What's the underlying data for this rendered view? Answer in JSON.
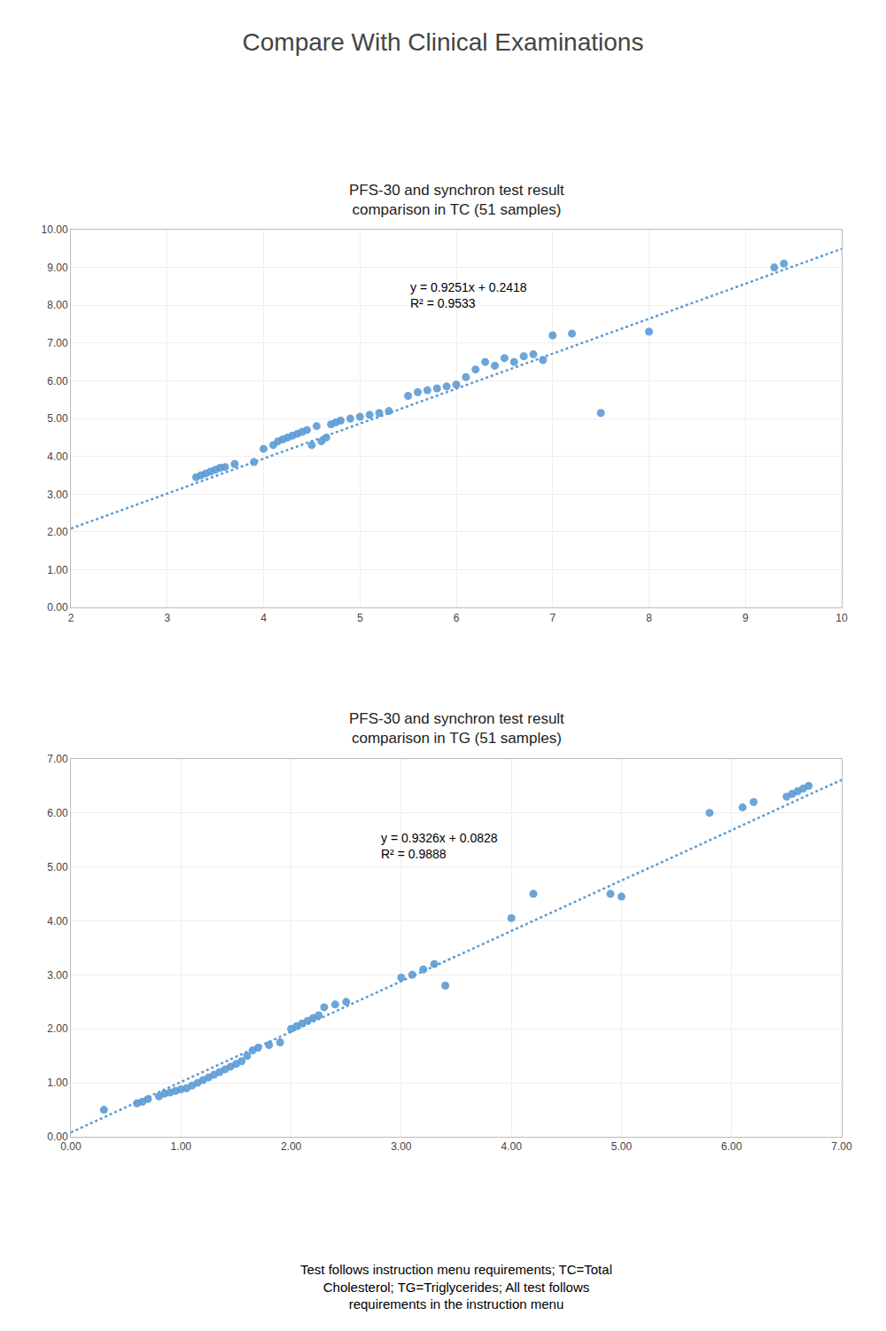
{
  "title": "Compare With Clinical Examinations",
  "footer": "Test follows instruction menu requirements; TC=Total\nCholesterol; TG=Triglycerides; All test follows\nrequirements in the instruction menu",
  "chart_data": [
    {
      "type": "scatter",
      "title": "PFS-30 and synchron test result\ncomparison in TC (51 samples)",
      "grid": true,
      "xlim": [
        2,
        10
      ],
      "ylim": [
        0,
        10
      ],
      "xticks": [
        2,
        3,
        4,
        5,
        6,
        7,
        8,
        9,
        10
      ],
      "yticks": [
        {
          "value": 0.0,
          "label": "0.00"
        },
        {
          "value": 1.0,
          "label": "1.00"
        },
        {
          "value": 2.0,
          "label": "2.00"
        },
        {
          "value": 3.0,
          "label": "3.00"
        },
        {
          "value": 4.0,
          "label": "4.00"
        },
        {
          "value": 5.0,
          "label": "5.00"
        },
        {
          "value": 6.0,
          "label": "6.00"
        },
        {
          "value": 7.0,
          "label": "7.00"
        },
        {
          "value": 8.0,
          "label": "8.00"
        },
        {
          "value": 9.0,
          "label": "9.00"
        },
        {
          "value": 10.0,
          "label": "10.00"
        }
      ],
      "series": [
        {
          "type": "scatter",
          "marker": "circle",
          "color": "#5b9bd5",
          "x": [
            3.3,
            3.35,
            3.4,
            3.45,
            3.5,
            3.55,
            3.6,
            3.7,
            3.9,
            4.0,
            4.1,
            4.15,
            4.2,
            4.25,
            4.3,
            4.35,
            4.4,
            4.45,
            4.5,
            4.55,
            4.6,
            4.65,
            4.7,
            4.75,
            4.8,
            4.9,
            5.0,
            5.1,
            5.2,
            5.3,
            5.5,
            5.6,
            5.7,
            5.8,
            5.9,
            6.0,
            6.1,
            6.2,
            6.3,
            6.4,
            6.5,
            6.6,
            6.7,
            6.8,
            6.9,
            7.0,
            7.2,
            7.5,
            8.0,
            9.3,
            9.4
          ],
          "values": [
            3.45,
            3.5,
            3.55,
            3.6,
            3.65,
            3.7,
            3.72,
            3.8,
            3.85,
            4.2,
            4.3,
            4.4,
            4.45,
            4.5,
            4.55,
            4.6,
            4.65,
            4.7,
            4.3,
            4.8,
            4.4,
            4.5,
            4.85,
            4.9,
            4.95,
            5.0,
            5.05,
            5.1,
            5.15,
            5.2,
            5.6,
            5.7,
            5.75,
            5.8,
            5.85,
            5.9,
            6.1,
            6.3,
            6.5,
            6.4,
            6.6,
            6.5,
            6.65,
            6.7,
            6.55,
            7.2,
            7.25,
            5.15,
            7.3,
            9.0,
            9.1
          ]
        },
        {
          "type": "line",
          "line_style": "dotted",
          "color": "#5b9bd5",
          "x": [
            2,
            10
          ],
          "values": [
            2.092,
            9.4928
          ]
        }
      ],
      "annotations": [
        {
          "x": 5.5,
          "y": 8.7,
          "text": "y = 0.9251x + 0.2418\nR² = 0.9533"
        }
      ]
    },
    {
      "type": "scatter",
      "title": "PFS-30 and synchron test result\ncomparison in TG (51 samples)",
      "grid": true,
      "xlim": [
        0,
        7
      ],
      "ylim": [
        0,
        7
      ],
      "xticks": [
        {
          "value": 0.0,
          "label": "0.00"
        },
        {
          "value": 1.0,
          "label": "1.00"
        },
        {
          "value": 2.0,
          "label": "2.00"
        },
        {
          "value": 3.0,
          "label": "3.00"
        },
        {
          "value": 4.0,
          "label": "4.00"
        },
        {
          "value": 5.0,
          "label": "5.00"
        },
        {
          "value": 6.0,
          "label": "6.00"
        },
        {
          "value": 7.0,
          "label": "7.00"
        }
      ],
      "yticks": [
        {
          "value": 0.0,
          "label": "0.00"
        },
        {
          "value": 1.0,
          "label": "1.00"
        },
        {
          "value": 2.0,
          "label": "2.00"
        },
        {
          "value": 3.0,
          "label": "3.00"
        },
        {
          "value": 4.0,
          "label": "4.00"
        },
        {
          "value": 5.0,
          "label": "5.00"
        },
        {
          "value": 6.0,
          "label": "6.00"
        },
        {
          "value": 7.0,
          "label": "7.00"
        }
      ],
      "series": [
        {
          "type": "scatter",
          "marker": "circle",
          "color": "#5b9bd5",
          "x": [
            0.3,
            0.6,
            0.65,
            0.7,
            0.8,
            0.85,
            0.9,
            0.95,
            1.0,
            1.05,
            1.1,
            1.15,
            1.2,
            1.25,
            1.3,
            1.35,
            1.4,
            1.45,
            1.5,
            1.55,
            1.6,
            1.65,
            1.7,
            1.8,
            1.9,
            2.0,
            2.05,
            2.1,
            2.15,
            2.2,
            2.25,
            2.3,
            2.4,
            2.5,
            3.0,
            3.1,
            3.2,
            3.3,
            3.4,
            4.0,
            4.2,
            4.9,
            5.0,
            5.8,
            6.1,
            6.2,
            6.5,
            6.55,
            6.6,
            6.65,
            6.7
          ],
          "values": [
            0.5,
            0.62,
            0.65,
            0.7,
            0.75,
            0.8,
            0.82,
            0.85,
            0.88,
            0.9,
            0.95,
            1.0,
            1.05,
            1.1,
            1.15,
            1.2,
            1.25,
            1.3,
            1.35,
            1.4,
            1.5,
            1.6,
            1.65,
            1.7,
            1.75,
            2.0,
            2.05,
            2.1,
            2.15,
            2.2,
            2.25,
            2.4,
            2.45,
            2.5,
            2.95,
            3.0,
            3.1,
            3.2,
            2.8,
            4.05,
            4.5,
            4.5,
            4.45,
            6.0,
            6.1,
            6.2,
            6.3,
            6.35,
            6.4,
            6.45,
            6.5
          ]
        },
        {
          "type": "line",
          "line_style": "dotted",
          "color": "#5b9bd5",
          "x": [
            0,
            7
          ],
          "values": [
            0.0828,
            6.611
          ]
        }
      ],
      "annotations": [
        {
          "x": 2.8,
          "y": 5.7,
          "text": "y = 0.9326x + 0.0828\nR² = 0.9888"
        }
      ]
    }
  ]
}
